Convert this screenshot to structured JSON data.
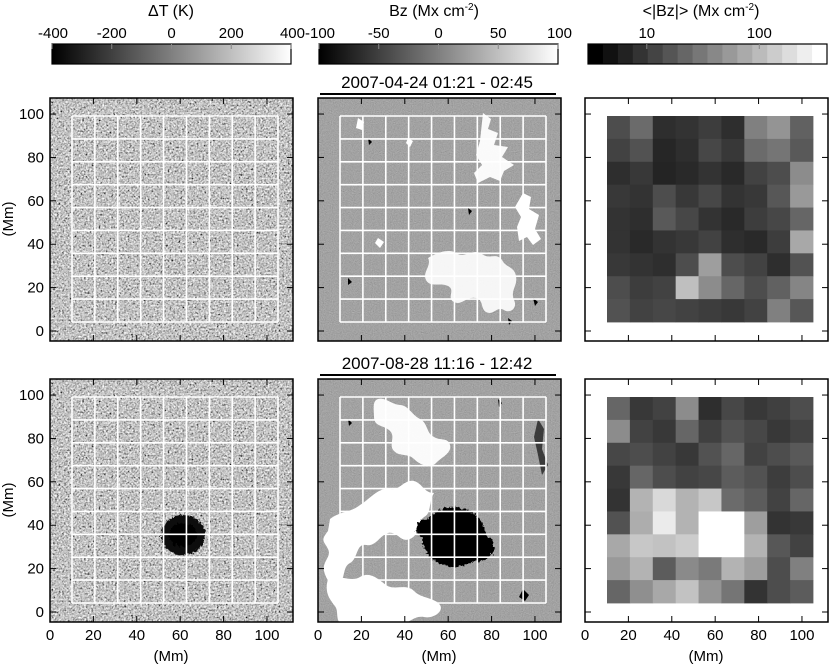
{
  "figure": {
    "colorbars": [
      {
        "id": "dT",
        "title_main": "ΔT (K)",
        "title_unit_sup": "",
        "ticks": [
          "-400",
          "-200",
          "0",
          "200",
          "400"
        ],
        "range": [
          -400,
          400
        ],
        "scale": "linear"
      },
      {
        "id": "bz",
        "title_main": "Bz (Mx cm",
        "title_unit_sup": "-2",
        "title_close": ")",
        "ticks": [
          "-100",
          "-50",
          "0",
          "50",
          "100"
        ],
        "range": [
          -100,
          100
        ],
        "scale": "linear"
      },
      {
        "id": "absbz",
        "title_main": "<|Bz|> (Mx cm",
        "title_unit_sup": "-2",
        "title_close": ")",
        "ticks": [
          "10",
          "100"
        ],
        "tick_values": [
          10,
          100
        ],
        "range": [
          3,
          400
        ],
        "scale": "log"
      }
    ],
    "rows": [
      {
        "title": "2007-04-24 01:21 - 02:45",
        "mean_field_grid": [
          [
            0.3,
            0.42,
            0.18,
            0.2,
            0.24,
            0.18,
            0.5,
            0.58,
            0.38
          ],
          [
            0.26,
            0.32,
            0.15,
            0.18,
            0.28,
            0.22,
            0.42,
            0.46,
            0.35
          ],
          [
            0.18,
            0.22,
            0.14,
            0.16,
            0.2,
            0.16,
            0.26,
            0.3,
            0.55
          ],
          [
            0.22,
            0.2,
            0.3,
            0.22,
            0.28,
            0.2,
            0.22,
            0.34,
            0.6
          ],
          [
            0.2,
            0.18,
            0.35,
            0.28,
            0.2,
            0.16,
            0.24,
            0.28,
            0.4
          ],
          [
            0.2,
            0.16,
            0.2,
            0.22,
            0.26,
            0.18,
            0.16,
            0.24,
            0.66
          ],
          [
            0.22,
            0.2,
            0.18,
            0.3,
            0.62,
            0.3,
            0.26,
            0.18,
            0.32
          ],
          [
            0.3,
            0.24,
            0.26,
            0.75,
            0.55,
            0.4,
            0.3,
            0.38,
            0.52
          ],
          [
            0.32,
            0.26,
            0.28,
            0.26,
            0.24,
            0.22,
            0.26,
            0.5,
            0.34
          ]
        ]
      },
      {
        "title": "2007-08-28 11:16 - 12:42",
        "mean_field_grid": [
          [
            0.4,
            0.22,
            0.26,
            0.55,
            0.18,
            0.28,
            0.22,
            0.25,
            0.3
          ],
          [
            0.55,
            0.26,
            0.22,
            0.4,
            0.25,
            0.32,
            0.28,
            0.22,
            0.26
          ],
          [
            0.28,
            0.3,
            0.26,
            0.22,
            0.32,
            0.4,
            0.26,
            0.3,
            0.35
          ],
          [
            0.22,
            0.4,
            0.3,
            0.26,
            0.28,
            0.36,
            0.32,
            0.24,
            0.3
          ],
          [
            0.2,
            0.7,
            0.85,
            0.7,
            0.78,
            0.42,
            0.36,
            0.26,
            0.4
          ],
          [
            0.32,
            0.68,
            0.92,
            0.7,
            1.0,
            1.0,
            0.62,
            0.2,
            0.22
          ],
          [
            0.66,
            0.78,
            0.76,
            0.8,
            1.0,
            1.0,
            0.7,
            0.34,
            0.26
          ],
          [
            0.6,
            0.7,
            0.36,
            0.54,
            0.48,
            0.7,
            0.62,
            0.3,
            0.5
          ],
          [
            0.4,
            0.56,
            0.66,
            0.76,
            0.58,
            0.46,
            0.2,
            0.3,
            0.36
          ]
        ]
      }
    ],
    "axes": {
      "y_label": "(Mm)",
      "x_label": "(Mm)",
      "y_ticks": [
        "0",
        "20",
        "40",
        "60",
        "80",
        "100"
      ],
      "x_ticks": [
        "0",
        "20",
        "40",
        "60",
        "80",
        "100"
      ],
      "range_Mm": [
        0,
        112
      ]
    }
  },
  "colors": {
    "grid_line": "#ffffff",
    "frame": "#000000",
    "background": "#ffffff"
  }
}
